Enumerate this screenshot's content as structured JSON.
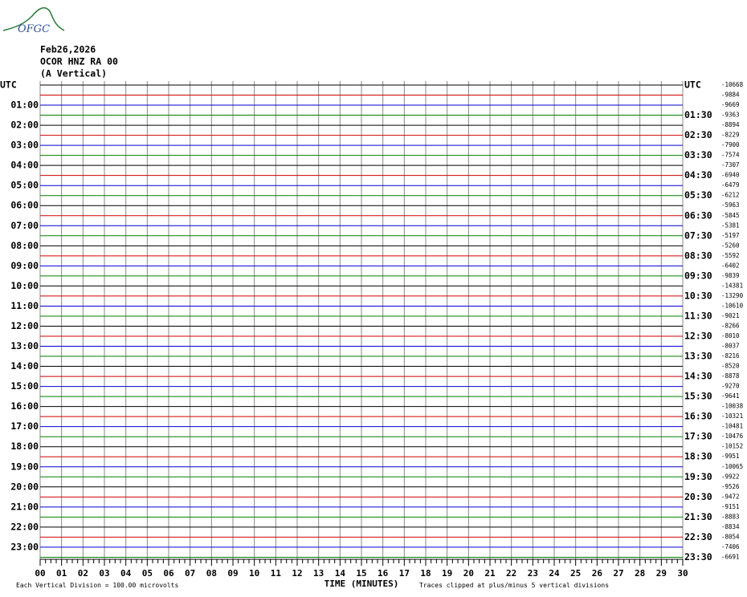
{
  "logo": "OFGC",
  "header": {
    "date": "Feb26,2026",
    "station": "OCOR HNZ RA 00",
    "component": "(A Vertical)"
  },
  "left_labels": [
    "UTC",
    "01:00",
    "02:00",
    "03:00",
    "04:00",
    "05:00",
    "06:00",
    "07:00",
    "08:00",
    "09:00",
    "10:00",
    "11:00",
    "12:00",
    "13:00",
    "14:00",
    "15:00",
    "16:00",
    "17:00",
    "18:00",
    "19:00",
    "20:00",
    "21:00",
    "22:00",
    "23:00"
  ],
  "right_labels": [
    "UTC",
    "01:30",
    "02:30",
    "03:30",
    "04:30",
    "05:30",
    "06:30",
    "07:30",
    "08:30",
    "09:30",
    "10:30",
    "11:30",
    "12:30",
    "13:30",
    "14:30",
    "15:30",
    "16:30",
    "17:30",
    "18:30",
    "19:30",
    "20:30",
    "21:30",
    "22:30",
    "23:30"
  ],
  "trace_offsets": [
    -10668,
    -9884,
    -9669,
    -9363,
    -8894,
    -8229,
    -7900,
    -7574,
    -7307,
    -6940,
    -6479,
    -6212,
    -5963,
    -5845,
    -5381,
    -5197,
    -5260,
    -5592,
    -6402,
    -9839,
    -14381,
    -13290,
    -10610,
    -9021,
    -8266,
    -8010,
    -8037,
    -8216,
    -8520,
    -8878,
    -9270,
    -9641,
    -10038,
    -10321,
    -10481,
    -10476,
    -10152,
    -9951,
    -10065,
    -9922,
    -9526,
    -9472,
    -9151,
    -8883,
    -8834,
    -8054,
    -7406,
    -6691
  ],
  "trace_colors": [
    "#000000",
    "#d00000",
    "#0000d0",
    "#008000"
  ],
  "x_axis": {
    "ticks": [
      "00",
      "01",
      "02",
      "03",
      "04",
      "05",
      "06",
      "07",
      "08",
      "09",
      "10",
      "11",
      "12",
      "13",
      "14",
      "15",
      "16",
      "17",
      "18",
      "19",
      "20",
      "21",
      "22",
      "23",
      "24",
      "25",
      "26",
      "27",
      "28",
      "29",
      "30"
    ],
    "title": "TIME (MINUTES)"
  },
  "footer": {
    "scale": "Each Vertical Division =  100.00 microvolts",
    "clip": "Traces clipped at plus/minus 5 vertical divisions"
  }
}
